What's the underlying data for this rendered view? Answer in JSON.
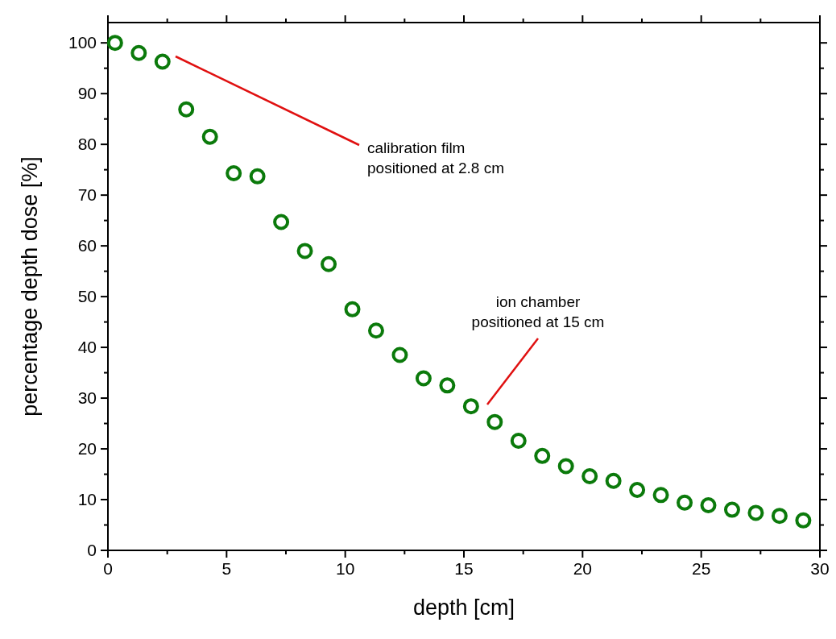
{
  "chart_data": {
    "type": "scatter",
    "xlabel": "depth [cm]",
    "ylabel": "percentage depth dose [%]",
    "x": [
      0.3,
      1.3,
      2.3,
      3.3,
      4.3,
      5.3,
      6.3,
      7.3,
      8.3,
      9.3,
      10.3,
      11.3,
      12.3,
      13.3,
      14.3,
      15.3,
      16.3,
      17.3,
      18.3,
      19.3,
      20.3,
      21.3,
      22.3,
      23.3,
      24.3,
      25.3,
      26.3,
      27.3,
      28.3,
      29.3
    ],
    "series": [
      {
        "color": "#0b7a0b",
        "values": [
          100,
          98,
          96.3,
          86.9,
          81.5,
          74.3,
          73.7,
          64.7,
          59,
          56.4,
          47.5,
          43.3,
          38.5,
          33.9,
          32.5,
          28.4,
          25.3,
          21.6,
          18.6,
          16.6,
          14.6,
          13.7,
          11.9,
          10.9,
          9.4,
          8.9,
          8,
          7.4,
          6.8,
          5.9
        ]
      }
    ],
    "marker": "circle",
    "xlim": [
      0,
      30
    ],
    "ylim": [
      0,
      104
    ],
    "xticks": [
      0,
      5,
      10,
      15,
      20,
      25,
      30
    ],
    "yticks": [
      0,
      10,
      20,
      30,
      40,
      50,
      60,
      70,
      80,
      90,
      100
    ],
    "grid": false,
    "annotations": [
      "calibration film\npositioned at 2.8 cm",
      "ion chamber\npositioned at 15 cm"
    ]
  }
}
